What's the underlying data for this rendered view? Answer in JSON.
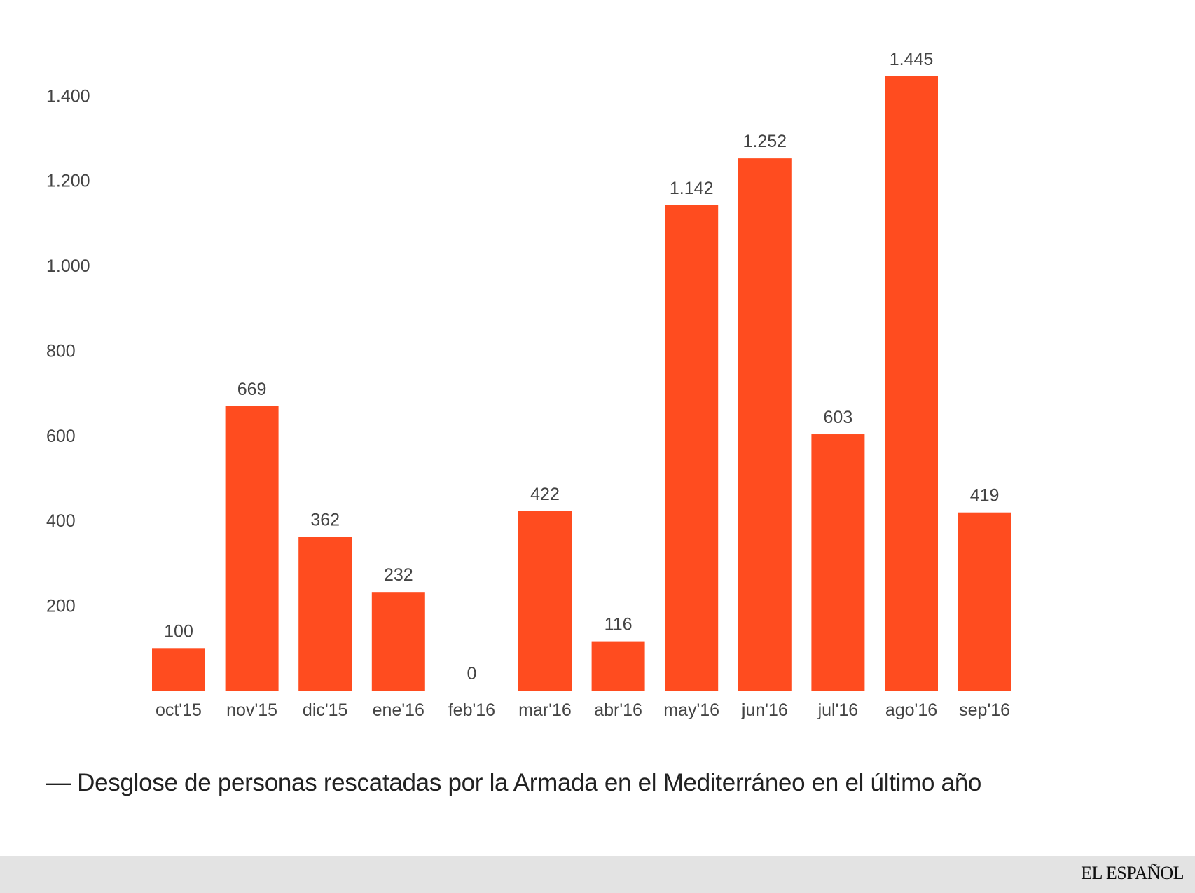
{
  "chart_data": {
    "type": "bar",
    "categories": [
      "oct'15",
      "nov'15",
      "dic'15",
      "ene'16",
      "feb'16",
      "mar'16",
      "abr'16",
      "may'16",
      "jun'16",
      "jul'16",
      "ago'16",
      "sep'16"
    ],
    "values": [
      100,
      669,
      362,
      232,
      0,
      422,
      116,
      1142,
      1252,
      603,
      1445,
      419
    ],
    "value_labels": [
      "100",
      "669",
      "362",
      "232",
      "0",
      "422",
      "116",
      "1.142",
      "1.252",
      "603",
      "1.445",
      "419"
    ],
    "y_ticks": [
      200,
      400,
      600,
      800,
      1000,
      1200,
      1400
    ],
    "y_tick_labels": [
      "200",
      "400",
      "600",
      "800",
      "1.000",
      "1.200",
      "1.400"
    ],
    "ylim": [
      0,
      1445
    ],
    "grid": false,
    "legend": "none",
    "title": "",
    "xlabel": "",
    "ylabel": "",
    "bar_color": "#ff4c1f"
  },
  "caption": "— Desglose de personas rescatadas por la Armada en el Mediterráneo en el último año",
  "brand": "EL ESPAÑOL",
  "colors": {
    "bar": "#ff4c1f",
    "footer_bg": "#e3e3e3",
    "text": "#444444"
  }
}
